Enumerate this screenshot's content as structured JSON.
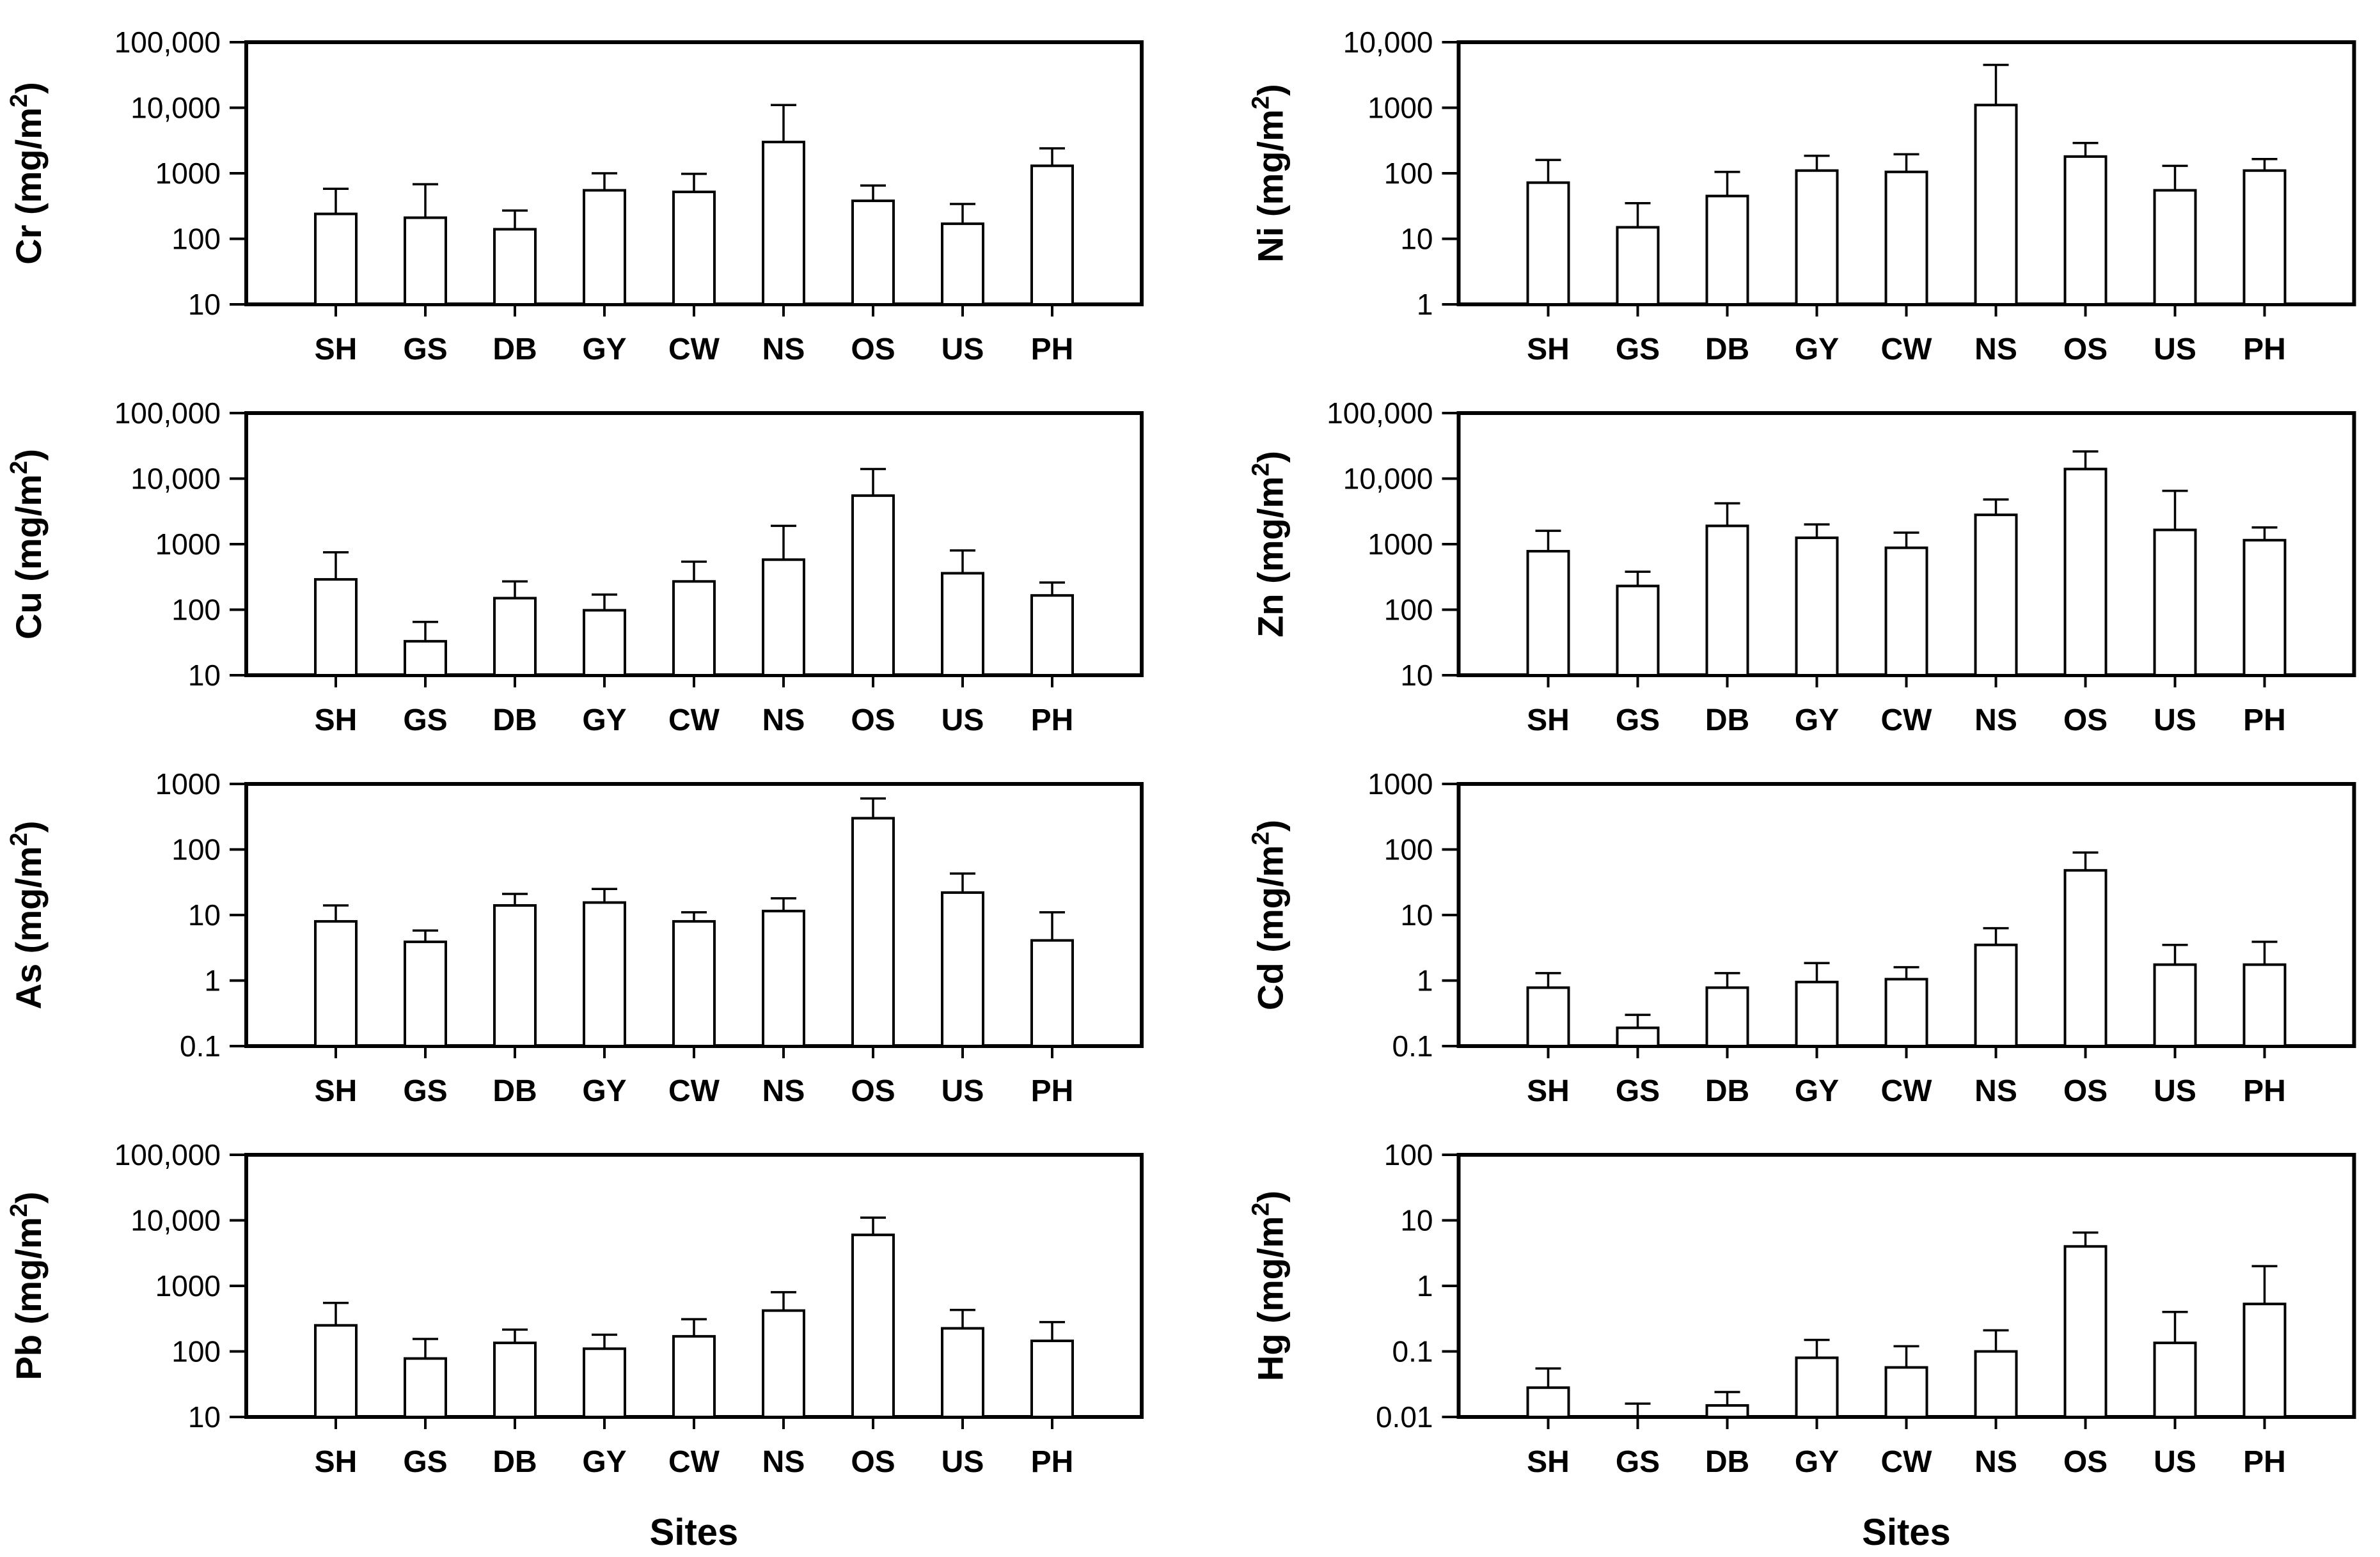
{
  "figure": {
    "background": "#ffffff",
    "text_color": "#000000",
    "x_axis_title": "Sites",
    "sites": [
      "SH",
      "GS",
      "DB",
      "GY",
      "CW",
      "NS",
      "OS",
      "US",
      "PH"
    ]
  },
  "chart_data": [
    {
      "type": "bar",
      "element": "Cr",
      "ylabel": "Cr (mg/m²)",
      "ylabel_parts": [
        "Cr (mg/m",
        "2",
        ")"
      ],
      "y_scale": "log",
      "ylim": [
        10,
        100000
      ],
      "ytick_values": [
        10,
        100,
        1000,
        10000,
        100000
      ],
      "ytick_labels": [
        "10",
        "100",
        "1000",
        "10,000",
        "100,000"
      ],
      "categories": [
        "SH",
        "GS",
        "DB",
        "GY",
        "CW",
        "NS",
        "OS",
        "US",
        "PH"
      ],
      "values": [
        240,
        210,
        140,
        550,
        520,
        3000,
        380,
        170,
        1300
      ],
      "errors_upper": [
        580,
        680,
        270,
        1000,
        980,
        11000,
        650,
        340,
        2400
      ],
      "xlabel": "",
      "grid": false,
      "legend": null,
      "bar_fill": "#ffffff",
      "bar_stroke": "#000000"
    },
    {
      "type": "bar",
      "element": "Ni",
      "ylabel": "Ni (mg/m²)",
      "ylabel_parts": [
        "Ni (mg/m",
        "2",
        ")"
      ],
      "y_scale": "log",
      "ylim": [
        1,
        10000
      ],
      "ytick_values": [
        1,
        10,
        100,
        1000,
        10000
      ],
      "ytick_labels": [
        "1",
        "10",
        "100",
        "1000",
        "10,000"
      ],
      "categories": [
        "SH",
        "GS",
        "DB",
        "GY",
        "CW",
        "NS",
        "OS",
        "US",
        "PH"
      ],
      "values": [
        72,
        15,
        45,
        110,
        105,
        1100,
        180,
        55,
        110
      ],
      "errors_upper": [
        160,
        35,
        105,
        185,
        195,
        4500,
        290,
        130,
        165
      ],
      "xlabel": "",
      "grid": false,
      "legend": null,
      "bar_fill": "#ffffff",
      "bar_stroke": "#000000"
    },
    {
      "type": "bar",
      "element": "Cu",
      "ylabel": "Cu (mg/m²)",
      "ylabel_parts": [
        "Cu (mg/m",
        "2",
        ")"
      ],
      "y_scale": "log",
      "ylim": [
        10,
        100000
      ],
      "ytick_values": [
        10,
        100,
        1000,
        10000,
        100000
      ],
      "ytick_labels": [
        "10",
        "100",
        "1000",
        "10,000",
        "100,000"
      ],
      "categories": [
        "SH",
        "GS",
        "DB",
        "GY",
        "CW",
        "NS",
        "OS",
        "US",
        "PH"
      ],
      "values": [
        290,
        33,
        150,
        98,
        270,
        580,
        5500,
        360,
        165
      ],
      "errors_upper": [
        750,
        65,
        270,
        170,
        540,
        1900,
        14000,
        800,
        260
      ],
      "xlabel": "",
      "grid": false,
      "legend": null,
      "bar_fill": "#ffffff",
      "bar_stroke": "#000000"
    },
    {
      "type": "bar",
      "element": "Zn",
      "ylabel": "Zn (mg/m²)",
      "ylabel_parts": [
        "Zn (mg/m",
        "2",
        ")"
      ],
      "y_scale": "log",
      "ylim": [
        10,
        100000
      ],
      "ytick_values": [
        10,
        100,
        1000,
        10000,
        100000
      ],
      "ytick_labels": [
        "10",
        "100",
        "1000",
        "10,000",
        "100,000"
      ],
      "categories": [
        "SH",
        "GS",
        "DB",
        "GY",
        "CW",
        "NS",
        "OS",
        "US",
        "PH"
      ],
      "values": [
        780,
        230,
        1900,
        1250,
        880,
        2800,
        14000,
        1650,
        1150
      ],
      "errors_upper": [
        1600,
        380,
        4200,
        2000,
        1500,
        4800,
        26000,
        6500,
        1800
      ],
      "xlabel": "",
      "grid": false,
      "legend": null,
      "bar_fill": "#ffffff",
      "bar_stroke": "#000000"
    },
    {
      "type": "bar",
      "element": "As",
      "ylabel": "As (mg/m²)",
      "ylabel_parts": [
        "As (mg/m",
        "2",
        ")"
      ],
      "y_scale": "log",
      "ylim": [
        0.1,
        1000
      ],
      "ytick_values": [
        0.1,
        1,
        10,
        100,
        1000
      ],
      "ytick_labels": [
        "0.1",
        "1",
        "10",
        "100",
        "1000"
      ],
      "categories": [
        "SH",
        "GS",
        "DB",
        "GY",
        "CW",
        "NS",
        "OS",
        "US",
        "PH"
      ],
      "values": [
        8,
        3.9,
        14,
        15.5,
        8,
        11.5,
        300,
        22,
        4.1
      ],
      "errors_upper": [
        14,
        5.8,
        21,
        25,
        11,
        18,
        600,
        43,
        11
      ],
      "xlabel": "",
      "grid": false,
      "legend": null,
      "bar_fill": "#ffffff",
      "bar_stroke": "#000000"
    },
    {
      "type": "bar",
      "element": "Cd",
      "ylabel": "Cd (mg/m²)",
      "ylabel_parts": [
        "Cd (mg/m",
        "2",
        ")"
      ],
      "y_scale": "log",
      "ylim": [
        0.1,
        1000
      ],
      "ytick_values": [
        0.1,
        1,
        10,
        100,
        1000
      ],
      "ytick_labels": [
        "0.1",
        "1",
        "10",
        "100",
        "1000"
      ],
      "categories": [
        "SH",
        "GS",
        "DB",
        "GY",
        "CW",
        "NS",
        "OS",
        "US",
        "PH"
      ],
      "values": [
        0.78,
        0.19,
        0.78,
        0.95,
        1.05,
        3.5,
        48,
        1.75,
        1.75
      ],
      "errors_upper": [
        1.3,
        0.3,
        1.3,
        1.85,
        1.6,
        6.3,
        90,
        3.5,
        3.9
      ],
      "xlabel": "",
      "grid": false,
      "legend": null,
      "bar_fill": "#ffffff",
      "bar_stroke": "#000000"
    },
    {
      "type": "bar",
      "element": "Pb",
      "ylabel": "Pb (mg/m²)",
      "ylabel_parts": [
        "Pb (mg/m",
        "2",
        ")"
      ],
      "y_scale": "log",
      "ylim": [
        10,
        100000
      ],
      "ytick_values": [
        10,
        100,
        1000,
        10000,
        100000
      ],
      "ytick_labels": [
        "10",
        "100",
        "1000",
        "10,000",
        "100,000"
      ],
      "categories": [
        "SH",
        "GS",
        "DB",
        "GY",
        "CW",
        "NS",
        "OS",
        "US",
        "PH"
      ],
      "values": [
        250,
        78,
        135,
        110,
        170,
        420,
        6000,
        225,
        145
      ],
      "errors_upper": [
        550,
        155,
        215,
        180,
        310,
        800,
        11000,
        430,
        280
      ],
      "xlabel": "Sites",
      "grid": false,
      "legend": null,
      "bar_fill": "#ffffff",
      "bar_stroke": "#000000"
    },
    {
      "type": "bar",
      "element": "Hg",
      "ylabel": "Hg (mg/m²)",
      "ylabel_parts": [
        "Hg (mg/m",
        "2",
        ")"
      ],
      "y_scale": "log",
      "ylim": [
        0.01,
        100
      ],
      "ytick_values": [
        0.01,
        0.1,
        1,
        10,
        100
      ],
      "ytick_labels": [
        "0.01",
        "0.1",
        "1",
        "10",
        "100"
      ],
      "categories": [
        "SH",
        "GS",
        "DB",
        "GY",
        "CW",
        "NS",
        "OS",
        "US",
        "PH"
      ],
      "values": [
        0.028,
        0.01,
        0.015,
        0.08,
        0.057,
        0.1,
        4.0,
        0.135,
        0.53
      ],
      "errors_upper": [
        0.055,
        0.016,
        0.024,
        0.15,
        0.12,
        0.21,
        6.5,
        0.4,
        2.0
      ],
      "xlabel": "Sites",
      "grid": false,
      "legend": null,
      "bar_fill": "#ffffff",
      "bar_stroke": "#000000"
    }
  ]
}
